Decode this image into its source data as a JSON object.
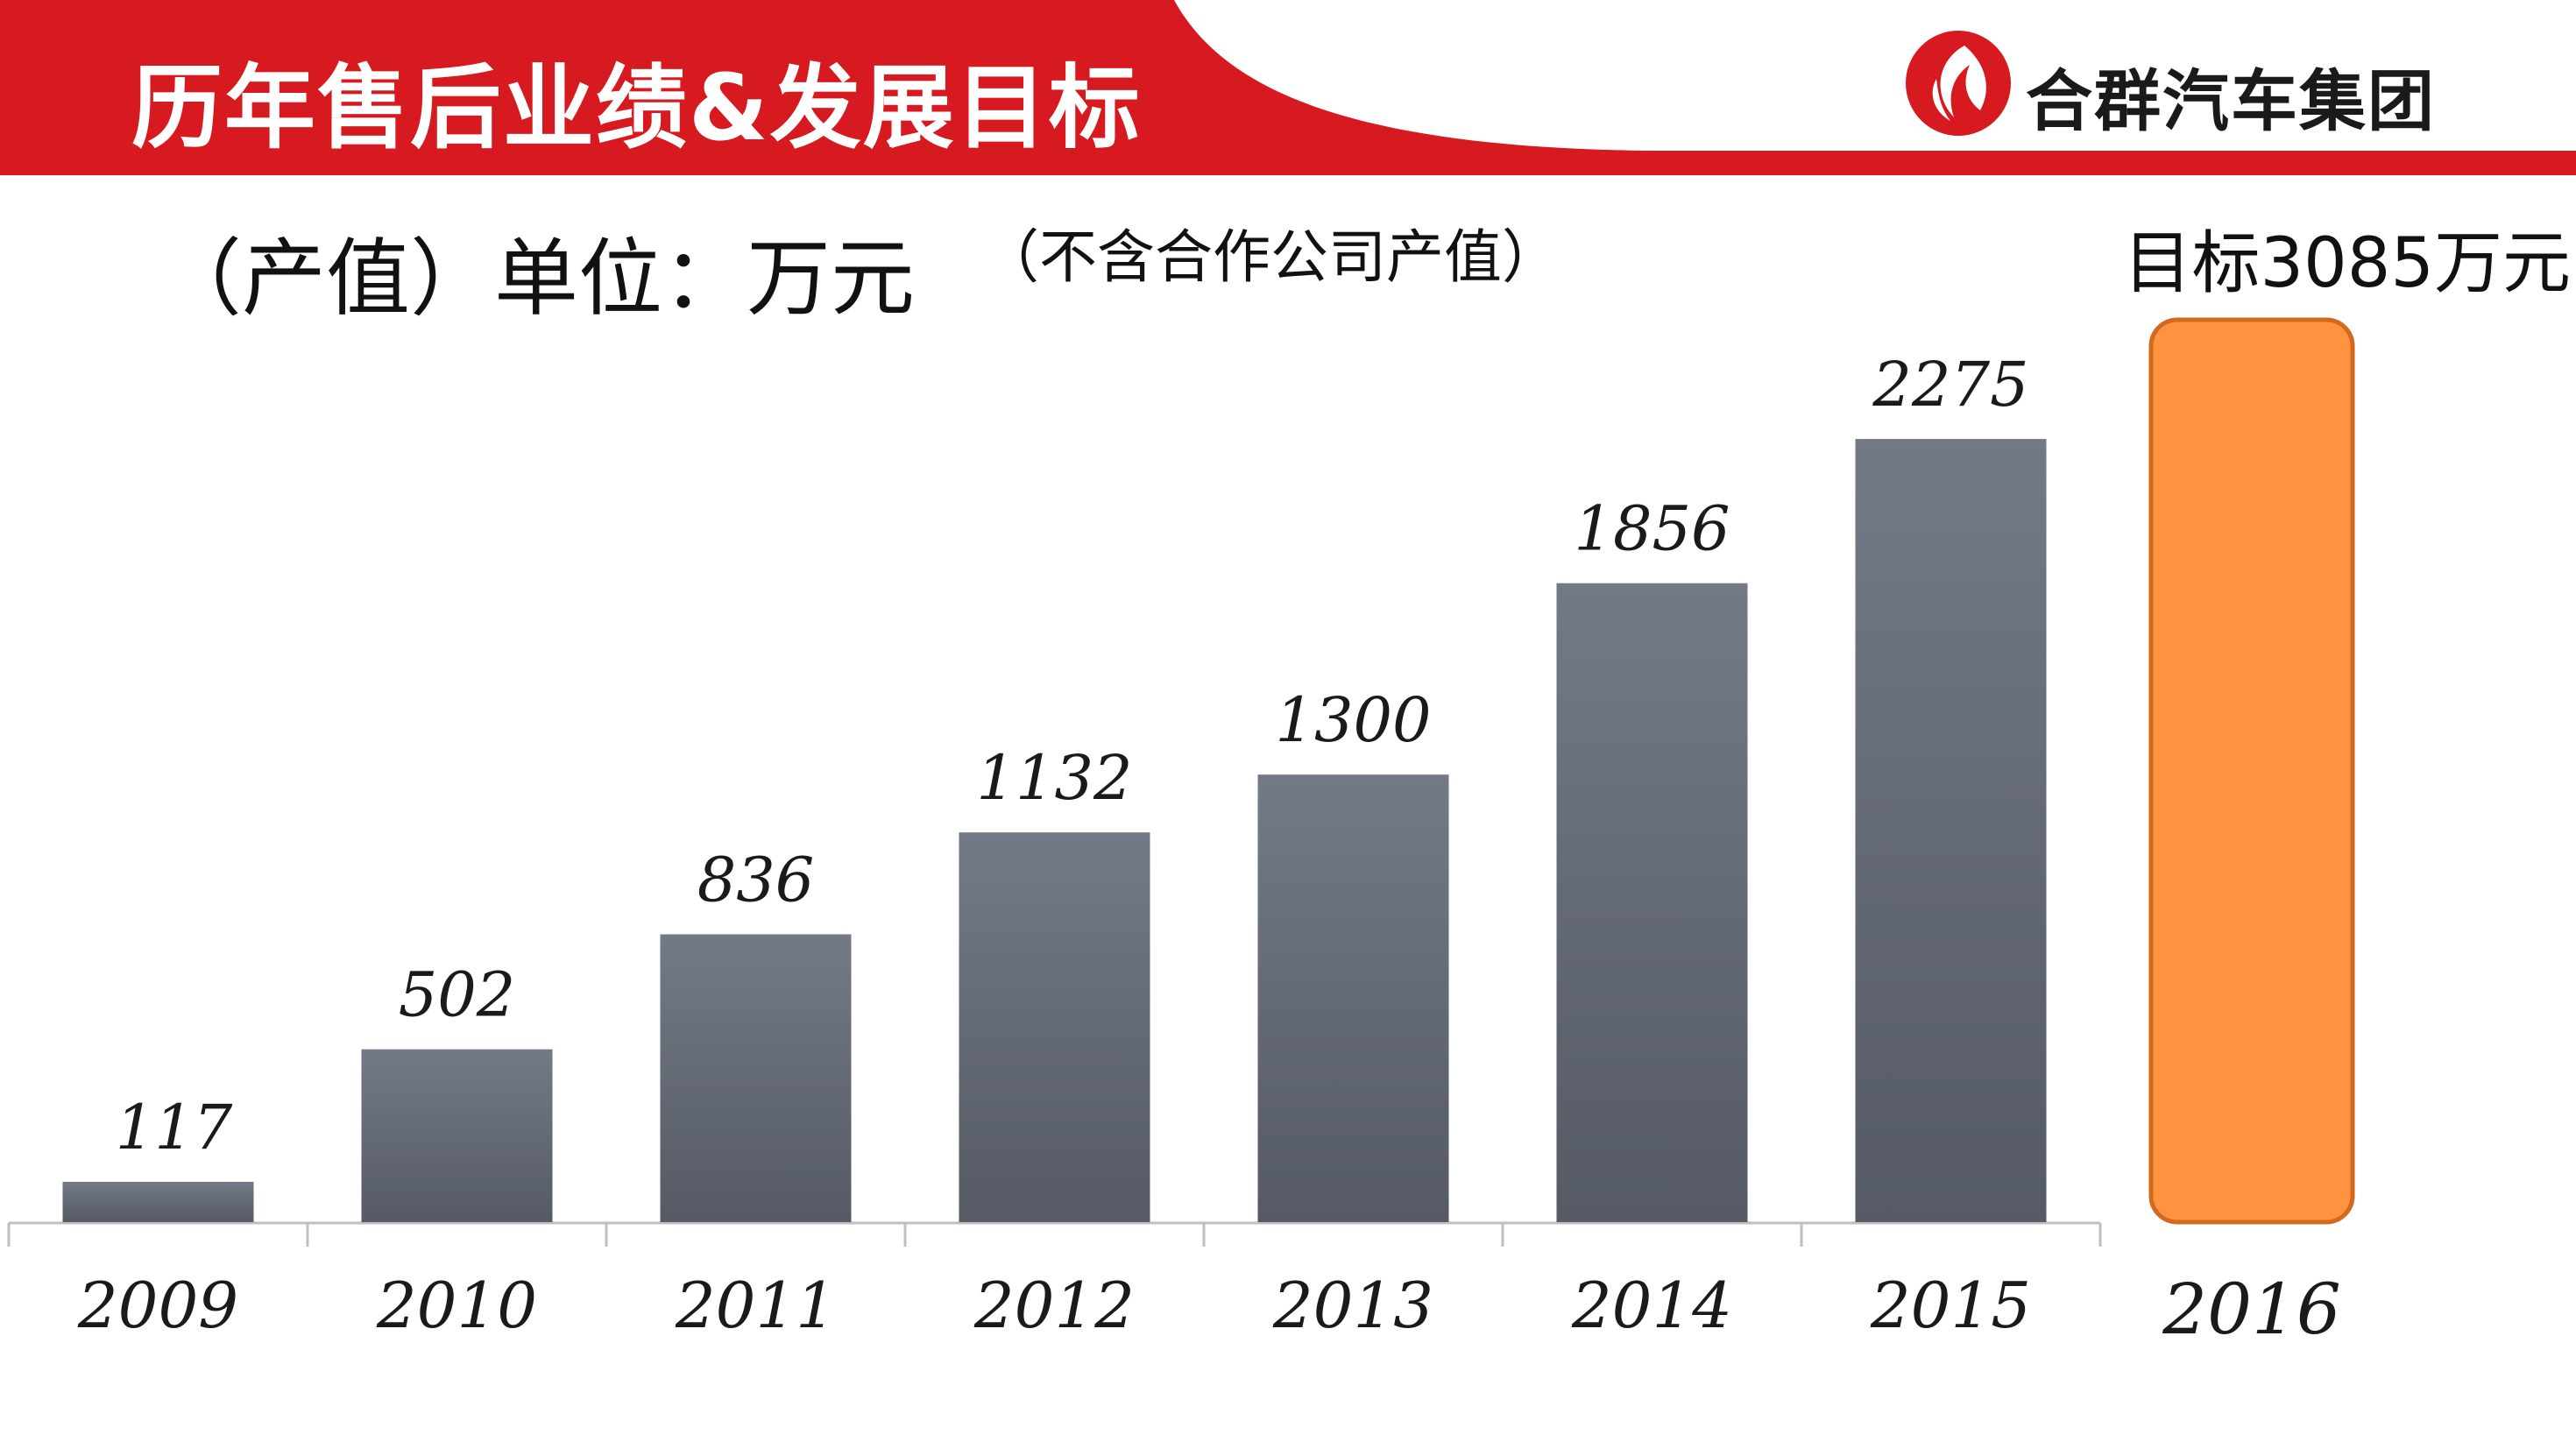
{
  "header": {
    "title": "历年售后业绩&发展目标",
    "brand": "合群汽车集团",
    "logo_icon": "flame-leaf-icon",
    "primary_color": "#d71920"
  },
  "subtitle": {
    "unit": "（产值）单位：万元",
    "note": "（不含合作公司产值）"
  },
  "target": {
    "label": "目标3085万元",
    "year": "2016",
    "value": 3085,
    "color": "#ff9340"
  },
  "chart_data": {
    "type": "bar",
    "categories": [
      "2009",
      "2010",
      "2011",
      "2012",
      "2013",
      "2014",
      "2015"
    ],
    "values": [
      117,
      502,
      836,
      1132,
      1300,
      1856,
      2275
    ],
    "value_labels": [
      "117",
      "502",
      "836",
      "1132",
      "1300",
      "1856",
      "2275"
    ],
    "bar_color": "#5f6470",
    "title": "",
    "xlabel": "",
    "ylabel": "",
    "ylim": [
      0,
      2405
    ],
    "grid": false
  }
}
